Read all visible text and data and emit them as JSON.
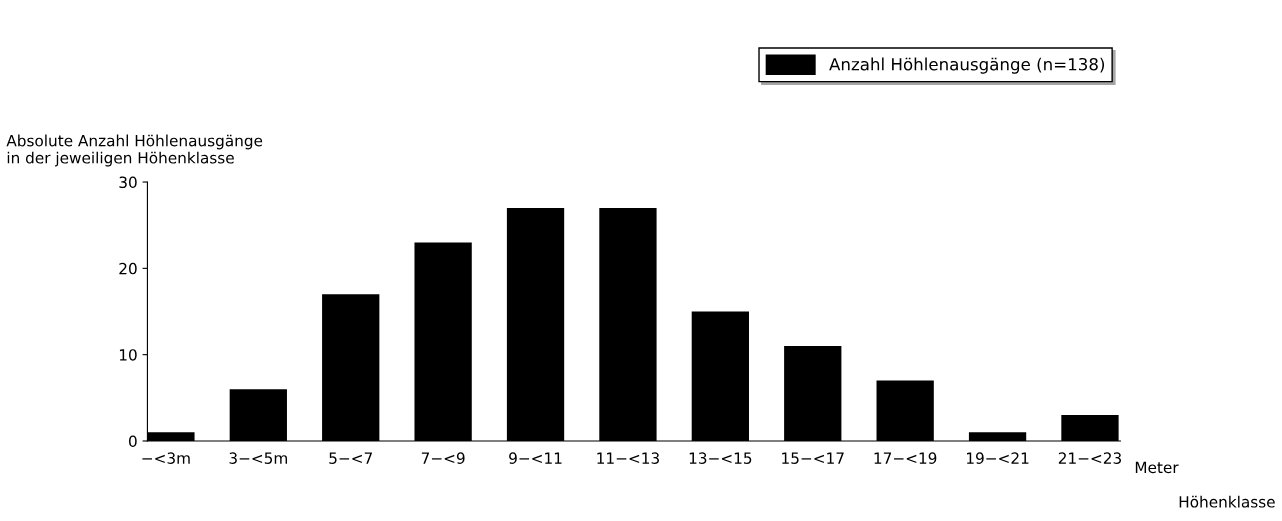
{
  "chart_data": {
    "type": "bar",
    "ylabel": "Absolute Anzahl Höhlenausgänge\nin der jeweiligen Höhenklasse",
    "xlabel": "Höhenklasse",
    "categories": [
      "−<3m",
      "3−<5m",
      "5−<7",
      "7−<9",
      "9−<11",
      "11−<13",
      "13−<15",
      "15−<17",
      "17−<19",
      "19−<21",
      "21−<23"
    ],
    "series": [
      {
        "name": "Anzahl Höhlenausgänge (n=138)",
        "color": "#000000",
        "values": [
          1,
          6,
          17,
          23,
          27,
          27,
          15,
          11,
          7,
          1,
          3
        ]
      }
    ],
    "ylim": [
      0,
      30
    ],
    "yticks": [
      0,
      10,
      20,
      30
    ],
    "annotations": [
      "Meter"
    ],
    "legend": "top right",
    "grid": false
  }
}
